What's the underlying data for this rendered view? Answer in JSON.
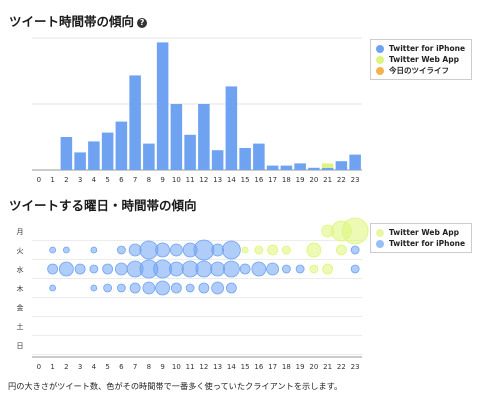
{
  "section1": {
    "title": "ツイート時間帯の傾向",
    "help_icon": "?"
  },
  "section2": {
    "title": "ツイートする曜日・時間帯の傾向"
  },
  "caption": "円の大きさがツイート数、色がその時間帯で一番多く使っていたクライアントを示します。",
  "colors": {
    "iphone": "#6fa3f2",
    "web": "#ddf57a",
    "today": "#f6b24a"
  },
  "chart_data": [
    {
      "type": "bar",
      "categories": [
        "0",
        "1",
        "2",
        "3",
        "4",
        "5",
        "6",
        "7",
        "8",
        "9",
        "10",
        "11",
        "12",
        "13",
        "14",
        "15",
        "16",
        "17",
        "18",
        "19",
        "20",
        "21",
        "22",
        "23"
      ],
      "series": [
        {
          "name": "Twitter for iPhone",
          "values": [
            0,
            0,
            15,
            8,
            13,
            17,
            22,
            43,
            12,
            58,
            30,
            16,
            30,
            9,
            38,
            10,
            12,
            2,
            2,
            3,
            1,
            1,
            4,
            7
          ]
        },
        {
          "name": "Twitter Web App",
          "values": [
            0,
            0,
            0,
            0,
            0,
            0,
            0,
            0,
            0,
            0,
            0,
            0,
            0,
            0,
            0,
            0,
            0,
            0,
            0,
            0,
            0,
            2,
            0,
            0
          ]
        },
        {
          "name": "今日のツイライフ",
          "values": [
            0,
            0,
            0,
            0,
            0,
            0,
            0,
            0,
            0,
            0,
            0,
            0,
            0,
            0,
            0,
            0,
            0,
            0,
            0,
            0,
            0,
            0,
            0,
            0
          ]
        }
      ],
      "legend": "top-right"
    },
    {
      "type": "scatter",
      "x_categories": [
        "0",
        "1",
        "2",
        "3",
        "4",
        "5",
        "6",
        "7",
        "8",
        "9",
        "10",
        "11",
        "12",
        "13",
        "14",
        "15",
        "16",
        "17",
        "18",
        "19",
        "20",
        "21",
        "22",
        "23"
      ],
      "y_categories": [
        "月",
        "火",
        "水",
        "木",
        "金",
        "土",
        "日"
      ],
      "series": [
        {
          "name": "Twitter Web App",
          "points": [
            {
              "hour": 21,
              "day": "月",
              "size": 6
            },
            {
              "hour": 22,
              "day": "月",
              "size": 10
            },
            {
              "hour": 23,
              "day": "月",
              "size": 13
            },
            {
              "hour": 15,
              "day": "火",
              "size": 3
            },
            {
              "hour": 16,
              "day": "火",
              "size": 4
            },
            {
              "hour": 17,
              "day": "火",
              "size": 5
            },
            {
              "hour": 18,
              "day": "火",
              "size": 4
            },
            {
              "hour": 20,
              "day": "火",
              "size": 7
            },
            {
              "hour": 22,
              "day": "火",
              "size": 5
            },
            {
              "hour": 20,
              "day": "水",
              "size": 4
            },
            {
              "hour": 21,
              "day": "水",
              "size": 5
            }
          ]
        },
        {
          "name": "Twitter for iPhone",
          "points": [
            {
              "hour": 1,
              "day": "火",
              "size": 3
            },
            {
              "hour": 2,
              "day": "火",
              "size": 3
            },
            {
              "hour": 4,
              "day": "火",
              "size": 3
            },
            {
              "hour": 6,
              "day": "火",
              "size": 4
            },
            {
              "hour": 7,
              "day": "火",
              "size": 6
            },
            {
              "hour": 8,
              "day": "火",
              "size": 9
            },
            {
              "hour": 9,
              "day": "火",
              "size": 7
            },
            {
              "hour": 10,
              "day": "火",
              "size": 6
            },
            {
              "hour": 11,
              "day": "火",
              "size": 7
            },
            {
              "hour": 12,
              "day": "火",
              "size": 10
            },
            {
              "hour": 13,
              "day": "火",
              "size": 6
            },
            {
              "hour": 14,
              "day": "火",
              "size": 9
            },
            {
              "hour": 23,
              "day": "火",
              "size": 4
            },
            {
              "hour": 1,
              "day": "水",
              "size": 5
            },
            {
              "hour": 2,
              "day": "水",
              "size": 7
            },
            {
              "hour": 3,
              "day": "水",
              "size": 5
            },
            {
              "hour": 4,
              "day": "水",
              "size": 4
            },
            {
              "hour": 5,
              "day": "水",
              "size": 5
            },
            {
              "hour": 6,
              "day": "水",
              "size": 6
            },
            {
              "hour": 7,
              "day": "水",
              "size": 8
            },
            {
              "hour": 8,
              "day": "水",
              "size": 9
            },
            {
              "hour": 9,
              "day": "水",
              "size": 9
            },
            {
              "hour": 10,
              "day": "水",
              "size": 7
            },
            {
              "hour": 11,
              "day": "水",
              "size": 8
            },
            {
              "hour": 12,
              "day": "水",
              "size": 8
            },
            {
              "hour": 13,
              "day": "水",
              "size": 7
            },
            {
              "hour": 14,
              "day": "水",
              "size": 8
            },
            {
              "hour": 15,
              "day": "水",
              "size": 5
            },
            {
              "hour": 16,
              "day": "水",
              "size": 7
            },
            {
              "hour": 17,
              "day": "水",
              "size": 6
            },
            {
              "hour": 18,
              "day": "水",
              "size": 4
            },
            {
              "hour": 19,
              "day": "水",
              "size": 4
            },
            {
              "hour": 23,
              "day": "水",
              "size": 4
            },
            {
              "hour": 1,
              "day": "木",
              "size": 3
            },
            {
              "hour": 4,
              "day": "木",
              "size": 3
            },
            {
              "hour": 5,
              "day": "木",
              "size": 4
            },
            {
              "hour": 6,
              "day": "木",
              "size": 4
            },
            {
              "hour": 7,
              "day": "木",
              "size": 5
            },
            {
              "hour": 8,
              "day": "木",
              "size": 6
            },
            {
              "hour": 9,
              "day": "木",
              "size": 7
            },
            {
              "hour": 10,
              "day": "木",
              "size": 5
            },
            {
              "hour": 11,
              "day": "木",
              "size": 4
            },
            {
              "hour": 12,
              "day": "木",
              "size": 5
            },
            {
              "hour": 13,
              "day": "木",
              "size": 6
            },
            {
              "hour": 14,
              "day": "木",
              "size": 5
            }
          ]
        }
      ],
      "legend": "top-right"
    }
  ]
}
